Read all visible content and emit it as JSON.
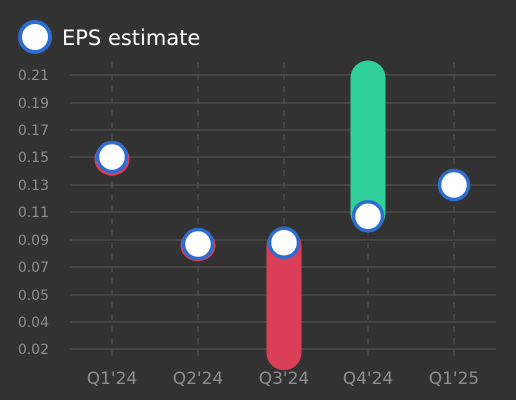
{
  "chart_data": {
    "type": "range-dot",
    "categories": [
      "Q1'24",
      "Q2'24",
      "Q3'24",
      "Q4'24",
      "Q1'25"
    ],
    "series": [
      {
        "name": "EPS estimate",
        "values": [
          0.15,
          0.087,
          0.088,
          0.107,
          0.13
        ]
      }
    ],
    "actual": [
      0.147,
      0.085,
      0.015,
      0.21,
      null
    ],
    "yticks": [
      0.02,
      0.04,
      0.05,
      0.07,
      0.09,
      0.11,
      0.13,
      0.15,
      0.17,
      0.19,
      0.21
    ],
    "legend_position": "top-left",
    "grid": {
      "horizontal": true,
      "vertical_dashed": true
    },
    "colors": {
      "background": "#323232",
      "grid": "#4a4a4a",
      "beat": "#2ecf98",
      "miss": "#db3f57",
      "estimate_fill": "#ffffff",
      "estimate_stroke": "#2f6cd0",
      "tick_text": "#8e8e8e"
    }
  }
}
